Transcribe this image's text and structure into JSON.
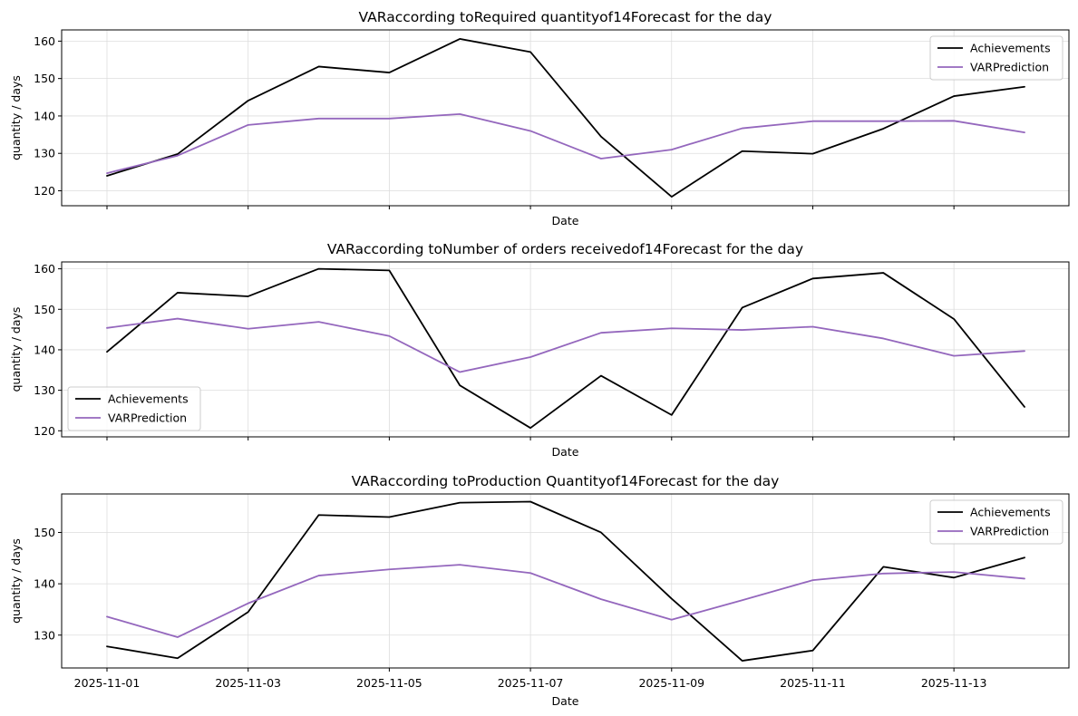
{
  "colors": {
    "actual": "#000000",
    "prediction": "#9467bd",
    "grid": "#dddddd",
    "frame": "#000000",
    "legend_border": "#cccccc"
  },
  "x_dates": [
    "2025-11-01",
    "2025-11-02",
    "2025-11-03",
    "2025-11-04",
    "2025-11-05",
    "2025-11-06",
    "2025-11-07",
    "2025-11-08",
    "2025-11-09",
    "2025-11-10",
    "2025-11-11",
    "2025-11-12",
    "2025-11-13",
    "2025-11-14"
  ],
  "x_tick_labels": [
    "2025-11-01",
    "2025-11-03",
    "2025-11-05",
    "2025-11-07",
    "2025-11-09",
    "2025-11-11",
    "2025-11-13"
  ],
  "chart_data": [
    {
      "type": "line",
      "title": "VARaccording toRequired quantityof14Forecast for the day",
      "xlabel": "Date",
      "ylabel": "quantity / days",
      "ylim": [
        116,
        163
      ],
      "yticks": [
        120,
        130,
        140,
        150,
        160
      ],
      "grid": true,
      "legend": "top-right",
      "show_x_tick_labels": false,
      "series": [
        {
          "name": "Achievements",
          "color_key": "actual",
          "values": [
            124.0,
            129.8,
            144.1,
            153.2,
            151.6,
            160.6,
            157.1,
            134.5,
            118.4,
            130.6,
            129.9,
            136.6,
            145.3,
            147.8
          ]
        },
        {
          "name": "VARPrediction",
          "color_key": "prediction",
          "values": [
            124.7,
            129.4,
            137.6,
            139.3,
            139.3,
            140.5,
            136.0,
            128.6,
            131.0,
            136.7,
            138.6,
            138.6,
            138.7,
            135.6
          ]
        }
      ]
    },
    {
      "type": "line",
      "title": "VARaccording toNumber of orders receivedof14Forecast for the day",
      "xlabel": "Date",
      "ylabel": "quantity / days",
      "ylim": [
        118.5,
        161.7
      ],
      "yticks": [
        120,
        130,
        140,
        150,
        160
      ],
      "grid": true,
      "legend": "bottom-left",
      "show_x_tick_labels": false,
      "series": [
        {
          "name": "Achievements",
          "color_key": "actual",
          "values": [
            139.5,
            154.1,
            153.2,
            160.0,
            159.6,
            131.2,
            120.7,
            133.6,
            123.9,
            150.4,
            157.6,
            159.0,
            147.6,
            125.9
          ]
        },
        {
          "name": "VARPrediction",
          "color_key": "prediction",
          "values": [
            145.4,
            147.7,
            145.2,
            146.9,
            143.4,
            134.5,
            138.2,
            144.2,
            145.3,
            144.9,
            145.7,
            142.8,
            138.5,
            139.7
          ]
        }
      ]
    },
    {
      "type": "line",
      "title": "VARaccording toProduction Quantityof14Forecast for the day",
      "xlabel": "Date",
      "ylabel": "quantity / days",
      "ylim": [
        123.6,
        157.5
      ],
      "yticks": [
        130,
        140,
        150
      ],
      "grid": true,
      "legend": "top-right",
      "show_x_tick_labels": true,
      "series": [
        {
          "name": "Achievements",
          "color_key": "actual",
          "values": [
            127.8,
            125.5,
            134.5,
            153.4,
            153.0,
            155.8,
            156.0,
            150.0,
            137.1,
            125.0,
            127.0,
            143.3,
            141.2,
            145.1
          ]
        },
        {
          "name": "VARPrediction",
          "color_key": "prediction",
          "values": [
            133.6,
            129.6,
            136.2,
            141.6,
            142.8,
            143.7,
            142.1,
            137.0,
            133.0,
            136.8,
            140.7,
            142.0,
            142.3,
            141.0
          ]
        }
      ]
    }
  ]
}
